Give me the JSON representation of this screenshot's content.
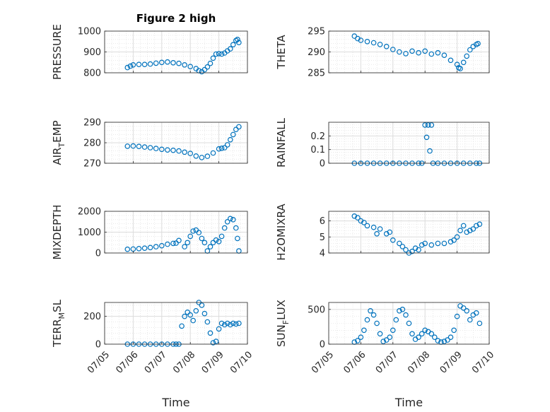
{
  "colors": {
    "marker": "#0072BD",
    "axis": "#262626",
    "grid": "#dcdcdc"
  },
  "chart_data": [
    {
      "type": "scatter",
      "title": "Figure 2 high",
      "ylabel": "PRESSURE",
      "xlabel": "",
      "ylim": [
        800,
        1000
      ],
      "yticks": [
        "1000",
        "900",
        "800"
      ],
      "ytick_values": [
        1000,
        900,
        800
      ],
      "xlim": [
        5,
        10
      ],
      "grid": true,
      "minor_grid": true,
      "x": [
        5.8,
        5.9,
        6.0,
        6.2,
        6.4,
        6.6,
        6.8,
        7.0,
        7.2,
        7.4,
        7.6,
        7.8,
        8.0,
        8.2,
        8.3,
        8.4,
        8.5,
        8.6,
        8.7,
        8.8,
        8.9,
        9.0,
        9.1,
        9.2,
        9.3,
        9.4,
        9.5,
        9.6,
        9.65,
        9.7
      ],
      "y": [
        825,
        832,
        838,
        840,
        840,
        842,
        846,
        850,
        852,
        848,
        845,
        838,
        830,
        820,
        810,
        805,
        815,
        828,
        845,
        870,
        890,
        892,
        890,
        895,
        905,
        915,
        935,
        955,
        960,
        945
      ]
    },
    {
      "type": "scatter",
      "title": "",
      "ylabel": "THETA",
      "xlabel": "",
      "ylim": [
        285,
        295
      ],
      "yticks": [
        "295",
        "290",
        "285"
      ],
      "ytick_values": [
        295,
        290,
        285
      ],
      "xlim": [
        5,
        10
      ],
      "grid": true,
      "minor_grid": true,
      "x": [
        5.8,
        5.9,
        6.0,
        6.2,
        6.4,
        6.6,
        6.8,
        7.0,
        7.2,
        7.4,
        7.6,
        7.8,
        8.0,
        8.2,
        8.4,
        8.6,
        8.8,
        9.0,
        9.05,
        9.1,
        9.2,
        9.3,
        9.4,
        9.5,
        9.6,
        9.65
      ],
      "y": [
        293.8,
        293.2,
        292.8,
        292.5,
        292.2,
        291.8,
        291.3,
        290.6,
        290.0,
        289.6,
        290.2,
        289.8,
        290.2,
        289.5,
        289.8,
        289.2,
        288.0,
        287.0,
        286.2,
        286.0,
        287.5,
        289.0,
        290.5,
        291.3,
        291.8,
        292.0
      ]
    },
    {
      "type": "scatter",
      "title": "",
      "ylabel": "AIR_TEMP",
      "ylabel_main": "AIR",
      "ylabel_sub": "T",
      "ylabel_rest": "EMP",
      "xlabel": "",
      "ylim": [
        270,
        290
      ],
      "yticks": [
        "290",
        "280",
        "270"
      ],
      "ytick_values": [
        290,
        280,
        270
      ],
      "xlim": [
        5,
        10
      ],
      "grid": true,
      "minor_grid": true,
      "x": [
        5.8,
        6.0,
        6.2,
        6.4,
        6.6,
        6.8,
        7.0,
        7.2,
        7.4,
        7.6,
        7.8,
        8.0,
        8.2,
        8.4,
        8.6,
        8.8,
        9.0,
        9.1,
        9.2,
        9.3,
        9.4,
        9.5,
        9.6,
        9.7
      ],
      "y": [
        278.3,
        278.4,
        278.2,
        277.9,
        277.6,
        277.2,
        276.8,
        276.5,
        276.3,
        276.0,
        275.4,
        274.8,
        273.5,
        272.8,
        273.4,
        275.0,
        277.0,
        277.3,
        277.6,
        279.0,
        281.5,
        284.0,
        286.5,
        287.8
      ]
    },
    {
      "type": "scatter",
      "title": "",
      "ylabel": "RAINFALL",
      "xlabel": "",
      "ylim": [
        0,
        0.3
      ],
      "yticks": [
        "0.2",
        "0.1",
        "0"
      ],
      "ytick_values": [
        0.2,
        0.1,
        0
      ],
      "xlim": [
        5,
        10
      ],
      "grid": true,
      "minor_grid": true,
      "x": [
        5.8,
        6.0,
        6.2,
        6.4,
        6.6,
        6.8,
        7.0,
        7.2,
        7.4,
        7.6,
        7.8,
        7.9,
        8.0,
        8.05,
        8.1,
        8.15,
        8.2,
        8.25,
        8.4,
        8.6,
        8.8,
        9.0,
        9.2,
        9.4,
        9.6,
        9.7
      ],
      "y": [
        0,
        0,
        0,
        0,
        0,
        0,
        0,
        0,
        0,
        0,
        0,
        0,
        0.28,
        0.19,
        0.28,
        0.09,
        0.28,
        0,
        0,
        0,
        0,
        0,
        0,
        0,
        0,
        0
      ]
    },
    {
      "type": "scatter",
      "title": "",
      "ylabel": "MIXDEPTH",
      "xlabel": "",
      "ylim": [
        0,
        2000
      ],
      "yticks": [
        "2000",
        "1000",
        "0"
      ],
      "ytick_values": [
        2000,
        1000,
        0
      ],
      "xlim": [
        5,
        10
      ],
      "grid": true,
      "minor_grid": true,
      "x": [
        5.8,
        6.0,
        6.2,
        6.4,
        6.6,
        6.8,
        7.0,
        7.2,
        7.4,
        7.5,
        7.6,
        7.8,
        7.9,
        8.0,
        8.1,
        8.2,
        8.3,
        8.4,
        8.5,
        8.6,
        8.7,
        8.8,
        8.9,
        9.0,
        9.1,
        9.2,
        9.3,
        9.4,
        9.5,
        9.6,
        9.65,
        9.7
      ],
      "y": [
        180,
        190,
        210,
        230,
        260,
        300,
        350,
        420,
        460,
        470,
        600,
        300,
        500,
        800,
        1050,
        1100,
        980,
        700,
        500,
        100,
        300,
        500,
        620,
        550,
        800,
        1200,
        1500,
        1650,
        1600,
        1200,
        700,
        100
      ]
    },
    {
      "type": "scatter",
      "title": "",
      "ylabel": "H2OMIXRA",
      "xlabel": "",
      "ylim": [
        4,
        6.6
      ],
      "yticks": [
        "6",
        "5",
        "4"
      ],
      "ytick_values": [
        6,
        5,
        4
      ],
      "xlim": [
        5,
        10
      ],
      "grid": true,
      "minor_grid": true,
      "x": [
        5.8,
        5.9,
        6.0,
        6.1,
        6.2,
        6.4,
        6.5,
        6.6,
        6.8,
        6.9,
        7.0,
        7.2,
        7.3,
        7.4,
        7.5,
        7.6,
        7.7,
        7.8,
        7.9,
        8.0,
        8.2,
        8.4,
        8.6,
        8.8,
        8.9,
        9.0,
        9.1,
        9.2,
        9.3,
        9.4,
        9.5,
        9.6,
        9.7
      ],
      "y": [
        6.3,
        6.2,
        6.0,
        5.9,
        5.7,
        5.6,
        5.2,
        5.5,
        5.2,
        5.3,
        4.8,
        4.6,
        4.4,
        4.2,
        4.0,
        4.1,
        4.3,
        4.2,
        4.5,
        4.6,
        4.5,
        4.6,
        4.6,
        4.7,
        4.8,
        5.0,
        5.4,
        5.7,
        5.3,
        5.4,
        5.5,
        5.7,
        5.8
      ]
    },
    {
      "type": "scatter",
      "title": "",
      "ylabel": "TERR_MSL",
      "ylabel_main": "TERR",
      "ylabel_sub": "M",
      "ylabel_rest": "SL",
      "xlabel": "Time",
      "ylim": [
        0,
        300
      ],
      "yticks": [
        "200",
        "0"
      ],
      "ytick_values": [
        200,
        0
      ],
      "xlim": [
        5,
        10
      ],
      "xticks": [
        "07/05",
        "07/06",
        "07/07",
        "07/08",
        "07/09",
        "07/10"
      ],
      "xtick_values": [
        5,
        6,
        7,
        8,
        9,
        10
      ],
      "grid": true,
      "minor_grid": true,
      "x": [
        5.8,
        6.0,
        6.2,
        6.4,
        6.6,
        6.8,
        7.0,
        7.2,
        7.4,
        7.5,
        7.6,
        7.7,
        7.8,
        7.9,
        8.0,
        8.1,
        8.2,
        8.3,
        8.4,
        8.5,
        8.6,
        8.7,
        8.8,
        8.9,
        9.0,
        9.1,
        9.2,
        9.3,
        9.4,
        9.5,
        9.6,
        9.7
      ],
      "y": [
        0,
        0,
        0,
        0,
        0,
        0,
        0,
        0,
        0,
        0,
        0,
        130,
        200,
        230,
        210,
        170,
        240,
        300,
        280,
        220,
        160,
        80,
        10,
        20,
        110,
        150,
        140,
        150,
        140,
        150,
        145,
        150
      ]
    },
    {
      "type": "scatter",
      "title": "",
      "ylabel": "SUN_FLUX",
      "ylabel_main": "SUN",
      "ylabel_sub": "F",
      "ylabel_rest": "LUX",
      "xlabel": "Time",
      "ylim": [
        0,
        600
      ],
      "yticks": [
        "500",
        "0"
      ],
      "ytick_values": [
        500,
        0
      ],
      "xlim": [
        5,
        10
      ],
      "xticks": [
        "07/05",
        "07/06",
        "07/07",
        "07/08",
        "07/09",
        "07/10"
      ],
      "xtick_values": [
        5,
        6,
        7,
        8,
        9,
        10
      ],
      "grid": true,
      "minor_grid": true,
      "x": [
        5.8,
        5.9,
        6.0,
        6.1,
        6.2,
        6.3,
        6.4,
        6.5,
        6.6,
        6.7,
        6.8,
        6.9,
        7.0,
        7.1,
        7.2,
        7.3,
        7.4,
        7.5,
        7.6,
        7.7,
        7.8,
        7.9,
        8.0,
        8.1,
        8.2,
        8.3,
        8.4,
        8.5,
        8.6,
        8.7,
        8.8,
        8.9,
        9.0,
        9.1,
        9.2,
        9.3,
        9.4,
        9.5,
        9.6,
        9.7
      ],
      "y": [
        30,
        50,
        100,
        200,
        350,
        480,
        420,
        300,
        150,
        40,
        60,
        100,
        200,
        350,
        480,
        500,
        420,
        300,
        150,
        70,
        100,
        150,
        200,
        180,
        150,
        100,
        50,
        30,
        40,
        60,
        100,
        200,
        400,
        550,
        520,
        480,
        350,
        420,
        450,
        300
      ]
    }
  ]
}
